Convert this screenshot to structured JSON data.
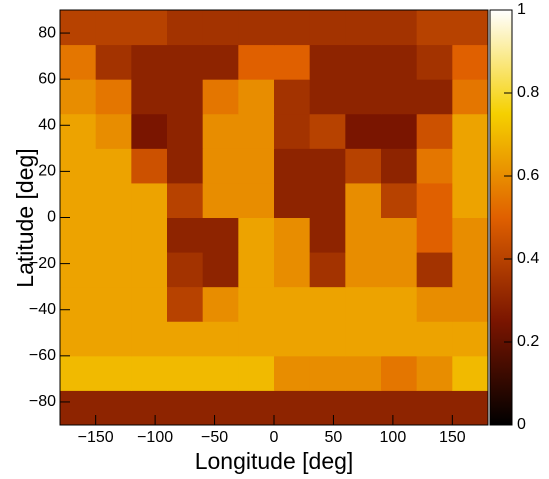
{
  "chart_data": {
    "type": "heatmap",
    "x_label": "Longitude [deg]",
    "y_label": "Latitude [deg]",
    "x_bins": [
      -180,
      -150,
      -120,
      -90,
      -60,
      -30,
      0,
      30,
      60,
      90,
      120,
      150,
      180
    ],
    "y_bins": [
      -90,
      -75,
      -60,
      -45,
      -30,
      -15,
      0,
      15,
      30,
      45,
      60,
      75,
      90
    ],
    "z": [
      [
        0.3,
        0.3,
        0.3,
        0.3,
        0.3,
        0.3,
        0.3,
        0.3,
        0.3,
        0.3,
        0.3,
        0.3
      ],
      [
        0.7,
        0.7,
        0.7,
        0.7,
        0.7,
        0.7,
        0.6,
        0.6,
        0.6,
        0.55,
        0.6,
        0.7
      ],
      [
        0.65,
        0.65,
        0.65,
        0.65,
        0.65,
        0.65,
        0.65,
        0.65,
        0.65,
        0.65,
        0.65,
        0.65
      ],
      [
        0.65,
        0.65,
        0.65,
        0.4,
        0.6,
        0.65,
        0.65,
        0.65,
        0.65,
        0.65,
        0.6,
        0.6
      ],
      [
        0.65,
        0.65,
        0.65,
        0.35,
        0.3,
        0.65,
        0.6,
        0.35,
        0.6,
        0.6,
        0.35,
        0.6
      ],
      [
        0.65,
        0.65,
        0.65,
        0.3,
        0.3,
        0.65,
        0.6,
        0.3,
        0.6,
        0.6,
        0.5,
        0.6
      ],
      [
        0.65,
        0.65,
        0.65,
        0.4,
        0.6,
        0.6,
        0.3,
        0.3,
        0.6,
        0.4,
        0.5,
        0.65
      ],
      [
        0.65,
        0.65,
        0.45,
        0.3,
        0.6,
        0.6,
        0.3,
        0.3,
        0.4,
        0.3,
        0.55,
        0.65
      ],
      [
        0.65,
        0.6,
        0.25,
        0.3,
        0.6,
        0.6,
        0.35,
        0.4,
        0.25,
        0.25,
        0.45,
        0.65
      ],
      [
        0.6,
        0.55,
        0.3,
        0.3,
        0.55,
        0.6,
        0.35,
        0.3,
        0.3,
        0.3,
        0.3,
        0.55
      ],
      [
        0.55,
        0.35,
        0.3,
        0.3,
        0.3,
        0.5,
        0.5,
        0.3,
        0.3,
        0.3,
        0.35,
        0.5
      ],
      [
        0.4,
        0.4,
        0.4,
        0.35,
        0.35,
        0.35,
        0.35,
        0.35,
        0.35,
        0.35,
        0.4,
        0.4
      ]
    ],
    "colormap": [
      "#000000",
      "#7a1500",
      "#e06000",
      "#f5d000",
      "#ffffff"
    ],
    "xlim": [
      -180,
      180
    ],
    "xticks": [
      {
        "value": -150,
        "label": "−150"
      },
      {
        "value": -100,
        "label": "−100"
      },
      {
        "value": -50,
        "label": "−50"
      },
      0,
      50,
      100,
      150
    ],
    "ylim": [
      -90,
      90
    ],
    "yticks": [
      {
        "value": -80,
        "label": "−80"
      },
      {
        "value": -60,
        "label": "−60"
      },
      {
        "value": -40,
        "label": "−40"
      },
      {
        "value": -20,
        "label": "−20"
      },
      0,
      20,
      40,
      60,
      80
    ],
    "zlim": [
      0,
      1
    ],
    "zticks": [
      0,
      0.2,
      0.4,
      0.6,
      0.8,
      1
    ]
  }
}
